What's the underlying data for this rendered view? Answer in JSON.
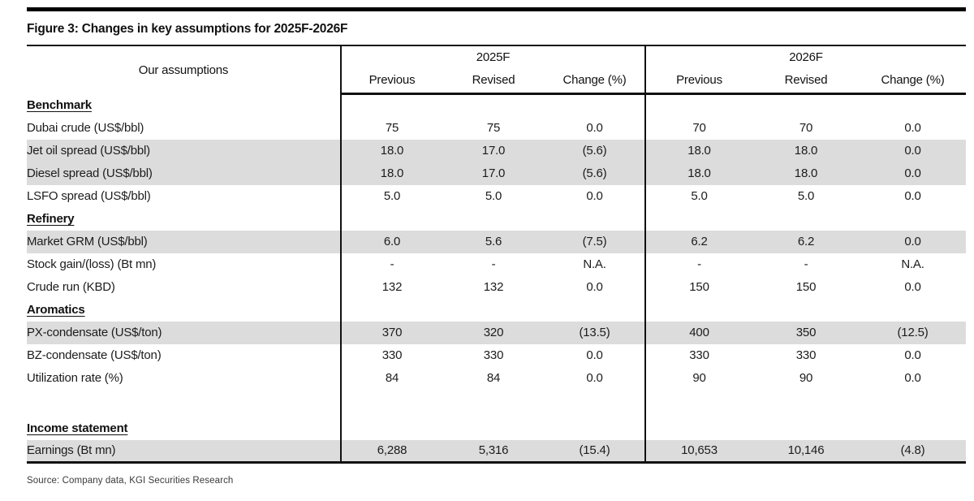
{
  "figure": {
    "title": "Figure 3: Changes in key assumptions for 2025F-2026F",
    "source": "Source: Company data, KGI Securities Research"
  },
  "colors": {
    "row_shade": "#dcdcdc",
    "rule": "#111111",
    "top_bar": "#000000"
  },
  "table": {
    "assumptions_header": "Our assumptions",
    "groups": [
      {
        "label": "2025F",
        "columns": [
          "Previous",
          "Revised",
          "Change (%)"
        ]
      },
      {
        "label": "2026F",
        "columns": [
          "Previous",
          "Revised",
          "Change (%)"
        ]
      }
    ],
    "rows": [
      {
        "type": "section",
        "label": "Benchmark"
      },
      {
        "type": "data",
        "label": "Dubai crude (US$/bbl)",
        "shaded": false,
        "values": [
          "75",
          "75",
          "0.0",
          "70",
          "70",
          "0.0"
        ]
      },
      {
        "type": "data",
        "label": "Jet oil spread (US$/bbl)",
        "shaded": true,
        "values": [
          "18.0",
          "17.0",
          "(5.6)",
          "18.0",
          "18.0",
          "0.0"
        ]
      },
      {
        "type": "data",
        "label": "Diesel spread (US$/bbl)",
        "shaded": true,
        "values": [
          "18.0",
          "17.0",
          "(5.6)",
          "18.0",
          "18.0",
          "0.0"
        ]
      },
      {
        "type": "data",
        "label": "LSFO spread (US$/bbl)",
        "shaded": false,
        "values": [
          "5.0",
          "5.0",
          "0.0",
          "5.0",
          "5.0",
          "0.0"
        ]
      },
      {
        "type": "section",
        "label": "Refinery"
      },
      {
        "type": "data",
        "label": "Market GRM (US$/bbl)",
        "shaded": true,
        "values": [
          "6.0",
          "5.6",
          "(7.5)",
          "6.2",
          "6.2",
          "0.0"
        ]
      },
      {
        "type": "data",
        "label": "Stock gain/(loss) (Bt mn)",
        "shaded": false,
        "values": [
          "-",
          "-",
          "N.A.",
          "-",
          "-",
          "N.A."
        ]
      },
      {
        "type": "data",
        "label": "Crude run (KBD)",
        "shaded": false,
        "values": [
          "132",
          "132",
          "0.0",
          "150",
          "150",
          "0.0"
        ]
      },
      {
        "type": "section",
        "label": "Aromatics"
      },
      {
        "type": "data",
        "label": "PX-condensate (US$/ton)",
        "shaded": true,
        "values": [
          "370",
          "320",
          "(13.5)",
          "400",
          "350",
          "(12.5)"
        ]
      },
      {
        "type": "data",
        "label": "BZ-condensate (US$/ton)",
        "shaded": false,
        "values": [
          "330",
          "330",
          "0.0",
          "330",
          "330",
          "0.0"
        ]
      },
      {
        "type": "data",
        "label": "Utilization rate (%)",
        "shaded": false,
        "values": [
          "84",
          "84",
          "0.0",
          "90",
          "90",
          "0.0"
        ]
      },
      {
        "type": "spacer"
      },
      {
        "type": "section",
        "label": "Income statement"
      },
      {
        "type": "data",
        "label": "Earnings (Bt mn)",
        "shaded": true,
        "values": [
          "6,288",
          "5,316",
          "(15.4)",
          "10,653",
          "10,146",
          "(4.8)"
        ]
      }
    ]
  }
}
